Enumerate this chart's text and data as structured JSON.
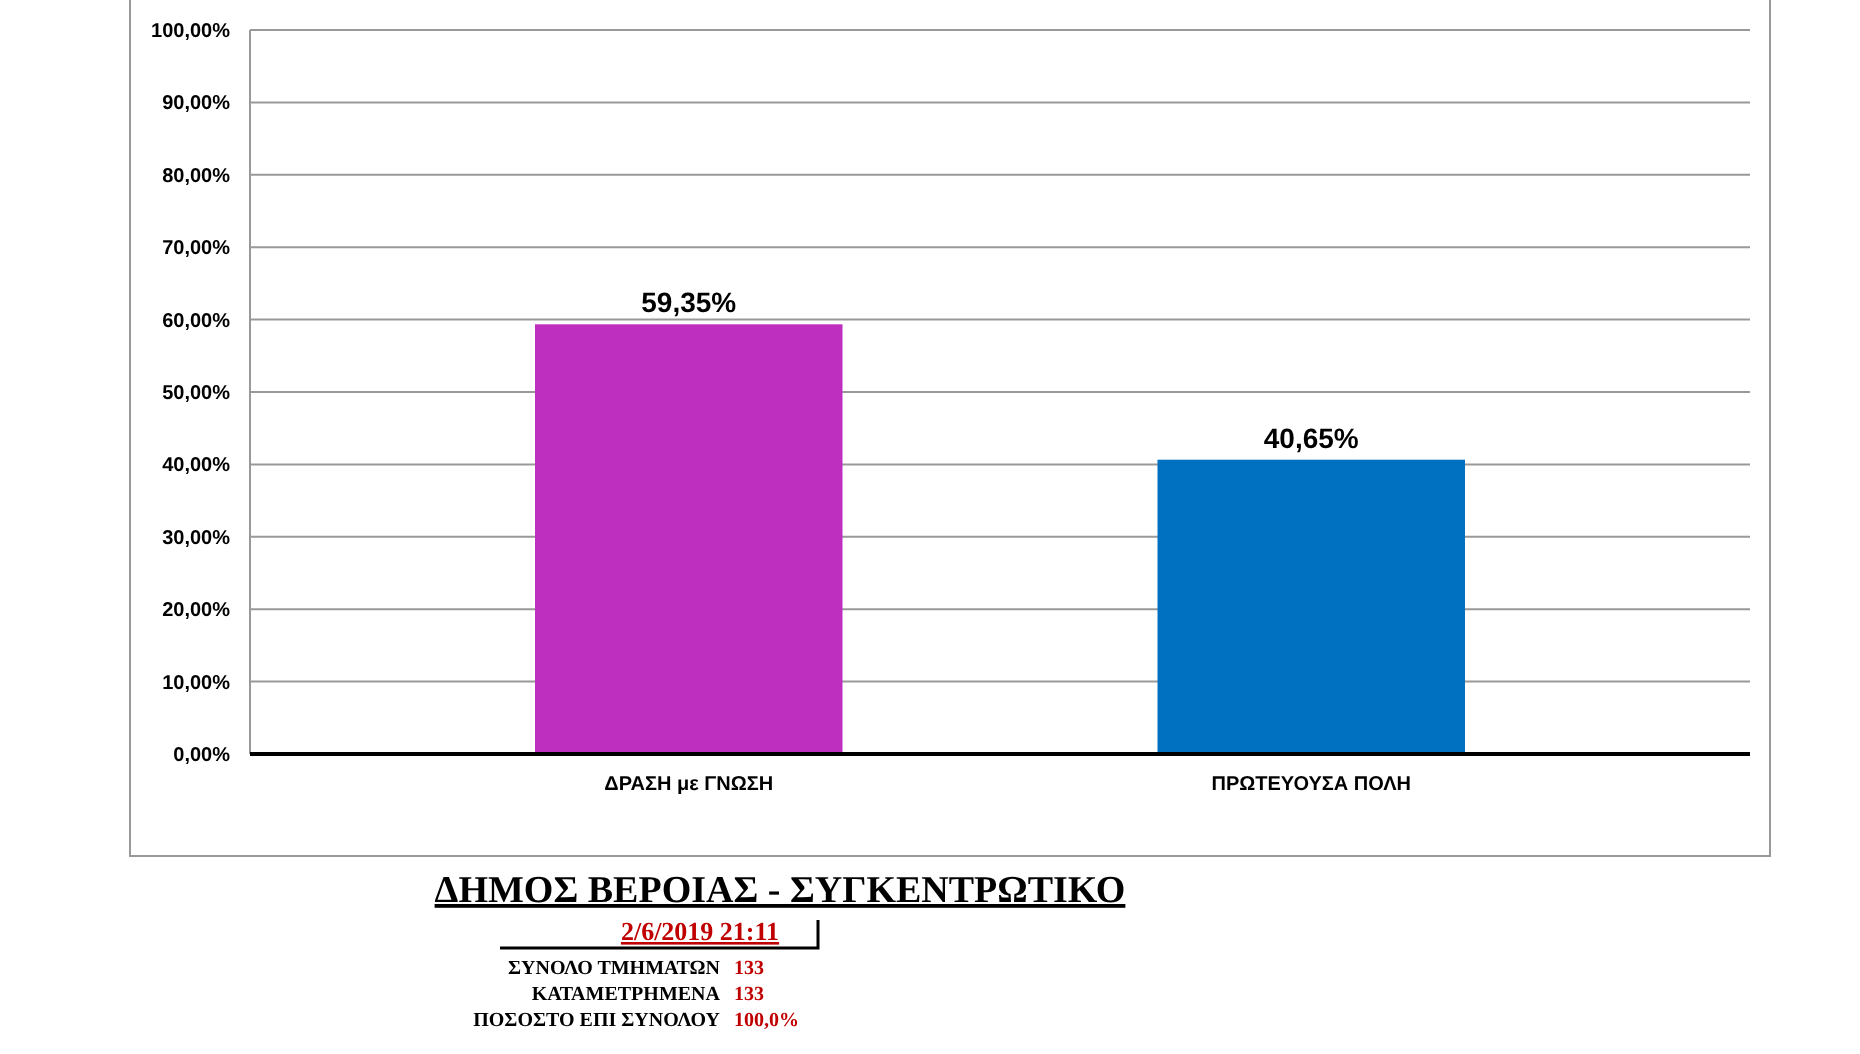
{
  "chart_data": {
    "type": "bar",
    "title": "ΔΗΜΟΣ ΒΕΡΟΙΑΣ - ΣΥΓΚΕΝΤΡΩΤΙΚΟ",
    "subtitle": "2/6/2019 21:11",
    "categories": [
      "ΔΡΑΣΗ με ΓΝΩΣΗ",
      "ΠΡΩΤΕΥΟΥΣΑ ΠΟΛΗ"
    ],
    "values": [
      59.35,
      40.65
    ],
    "colors": [
      "#bf2fbf",
      "#0070c0"
    ],
    "value_labels": [
      "59,35%",
      "40,65%"
    ],
    "ylim": [
      0,
      100
    ],
    "yticks": [
      {
        "value": 0,
        "label": "0,00%"
      },
      {
        "value": 10,
        "label": "10,00%"
      },
      {
        "value": 20,
        "label": "20,00%"
      },
      {
        "value": 30,
        "label": "30,00%"
      },
      {
        "value": 40,
        "label": "40,00%"
      },
      {
        "value": 50,
        "label": "50,00%"
      },
      {
        "value": 60,
        "label": "60,00%"
      },
      {
        "value": 70,
        "label": "70,00%"
      },
      {
        "value": 80,
        "label": "80,00%"
      },
      {
        "value": 90,
        "label": "90,00%"
      },
      {
        "value": 100,
        "label": "100,00%"
      }
    ],
    "grid": "y",
    "annotations": [
      "ΣΥΝΟΛΟ ΤΜΗΜΑΤΩΝ 133",
      "ΚΑΤΑΜΕΤΡΗΜΕΝΑ 133",
      "ΠΟΣΟΣΤΟ ΕΠΙ ΣΥΝΟΛΟΥ 100,0%"
    ]
  }
}
